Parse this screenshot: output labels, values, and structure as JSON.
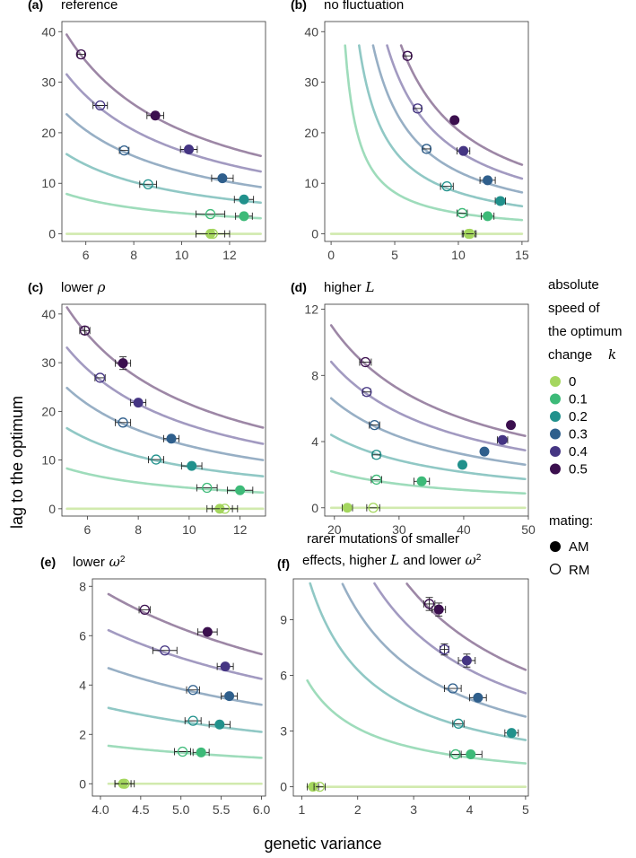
{
  "figure": {
    "xlabel": "genetic variance",
    "ylabel": "lag to the optimum",
    "legend": {
      "title_lines": [
        "absolute",
        "speed of",
        "the optimum",
        "change"
      ],
      "title_symbol": "k",
      "k_values": [
        "0",
        "0.1",
        "0.2",
        "0.3",
        "0.4",
        "0.5"
      ],
      "colors": [
        "#a4d65e",
        "#3dba78",
        "#21918c",
        "#2f5f8c",
        "#453583",
        "#3b0f4e"
      ],
      "mating_title": "mating:",
      "mating": [
        "AM",
        "RM"
      ]
    }
  },
  "chart_data": [
    {
      "type": "scatter",
      "tag": "(a)",
      "title": "reference",
      "xlim": [
        5,
        13.5
      ],
      "ylim": [
        -1.5,
        42
      ],
      "xticks": [
        6,
        8,
        10,
        12
      ],
      "yticks": [
        0,
        10,
        20,
        30,
        40
      ],
      "xtick_labels": [
        "6",
        "8",
        "10",
        "12"
      ],
      "ytick_labels": [
        "0",
        "10",
        "20",
        "30",
        "40"
      ],
      "curves": [
        {
          "k": 0,
          "C": 0,
          "xr": [
            5.2,
            13.3
          ]
        },
        {
          "k": 0.1,
          "C": 41,
          "xr": [
            5.2,
            13.3
          ]
        },
        {
          "k": 0.2,
          "C": 82,
          "xr": [
            5.2,
            13.3
          ]
        },
        {
          "k": 0.3,
          "C": 123,
          "xr": [
            5.2,
            13.3
          ]
        },
        {
          "k": 0.4,
          "C": 164,
          "xr": [
            5.2,
            13.3
          ]
        },
        {
          "k": 0.5,
          "C": 205,
          "xr": [
            5.2,
            13.3
          ]
        }
      ],
      "points": [
        {
          "k": 0,
          "m": "AM",
          "x": 11.2,
          "y": 0,
          "xe": 0.6
        },
        {
          "k": 0,
          "m": "RM",
          "x": 11.3,
          "y": 0,
          "xe": 0.7
        },
        {
          "k": 0.1,
          "m": "AM",
          "x": 12.6,
          "y": 3.5,
          "xe": 0.35
        },
        {
          "k": 0.1,
          "m": "RM",
          "x": 11.2,
          "y": 3.9,
          "xe": 0.6
        },
        {
          "k": 0.2,
          "m": "AM",
          "x": 12.6,
          "y": 6.8,
          "xe": 0.4
        },
        {
          "k": 0.2,
          "m": "RM",
          "x": 8.6,
          "y": 9.8,
          "xe": 0.35
        },
        {
          "k": 0.3,
          "m": "AM",
          "x": 11.7,
          "y": 11,
          "xe": 0.45
        },
        {
          "k": 0.3,
          "m": "RM",
          "x": 7.6,
          "y": 16.5,
          "xe": 0.2
        },
        {
          "k": 0.4,
          "m": "AM",
          "x": 10.3,
          "y": 16.7,
          "xe": 0.35
        },
        {
          "k": 0.4,
          "m": "RM",
          "x": 6.6,
          "y": 25.4,
          "xe": 0.3
        },
        {
          "k": 0.5,
          "m": "AM",
          "x": 8.9,
          "y": 23.4,
          "xe": 0.35
        },
        {
          "k": 0.5,
          "m": "RM",
          "x": 5.8,
          "y": 35.5,
          "xe": 0.15
        }
      ]
    },
    {
      "type": "scatter",
      "tag": "(b)",
      "title": "no fluctuation",
      "xlim": [
        -0.5,
        15.5
      ],
      "ylim": [
        -1.5,
        42
      ],
      "xticks": [
        0,
        5,
        10,
        15
      ],
      "yticks": [
        0,
        10,
        20,
        30,
        40
      ],
      "xtick_labels": [
        "0",
        "5",
        "10",
        "15"
      ],
      "ytick_labels": [
        "0",
        "10",
        "20",
        "30",
        "40"
      ],
      "curves": [
        {
          "k": 0,
          "C": 0,
          "xr": [
            0,
            15
          ]
        },
        {
          "k": 0.1,
          "C": 41,
          "xr": [
            1.1,
            15
          ]
        },
        {
          "k": 0.2,
          "C": 82,
          "xr": [
            2.2,
            15
          ]
        },
        {
          "k": 0.3,
          "C": 123,
          "xr": [
            3.3,
            15
          ]
        },
        {
          "k": 0.4,
          "C": 164,
          "xr": [
            4.4,
            15
          ]
        },
        {
          "k": 0.5,
          "C": 205,
          "xr": [
            5.5,
            15
          ]
        }
      ],
      "points": [
        {
          "k": 0,
          "m": "AM",
          "x": 10.8,
          "y": 0,
          "xe": 0.5
        },
        {
          "k": 0,
          "m": "RM",
          "x": 10.9,
          "y": 0,
          "xe": 0.5
        },
        {
          "k": 0.1,
          "m": "AM",
          "x": 12.3,
          "y": 3.5,
          "xe": 0.5
        },
        {
          "k": 0.1,
          "m": "RM",
          "x": 10.3,
          "y": 4.1,
          "xe": 0.4
        },
        {
          "k": 0.2,
          "m": "AM",
          "x": 13.3,
          "y": 6.5,
          "xe": 0.4
        },
        {
          "k": 0.2,
          "m": "RM",
          "x": 9.1,
          "y": 9.4,
          "xe": 0.5
        },
        {
          "k": 0.3,
          "m": "AM",
          "x": 12.3,
          "y": 10.6,
          "xe": 0.6
        },
        {
          "k": 0.3,
          "m": "RM",
          "x": 7.5,
          "y": 16.8,
          "xe": 0.3
        },
        {
          "k": 0.4,
          "m": "AM",
          "x": 10.4,
          "y": 16.4,
          "xe": 0.5
        },
        {
          "k": 0.4,
          "m": "RM",
          "x": 6.8,
          "y": 24.8,
          "xe": 0.3
        },
        {
          "k": 0.5,
          "m": "AM",
          "x": 9.7,
          "y": 22.5,
          "xe": 0.2
        },
        {
          "k": 0.5,
          "m": "RM",
          "x": 6.0,
          "y": 35.2,
          "xe": 0.3
        }
      ]
    },
    {
      "type": "scatter",
      "tag": "(c)",
      "title": "lower",
      "title_symbol": "ρ",
      "xlim": [
        5,
        13
      ],
      "ylim": [
        -1.5,
        42
      ],
      "xticks": [
        6,
        8,
        10,
        12
      ],
      "yticks": [
        0,
        10,
        20,
        30,
        40
      ],
      "xtick_labels": [
        "6",
        "8",
        "10",
        "12"
      ],
      "ytick_labels": [
        "0",
        "10",
        "20",
        "30",
        "40"
      ],
      "curves": [
        {
          "k": 0,
          "C": 0,
          "xr": [
            5.2,
            12.9
          ]
        },
        {
          "k": 0.1,
          "C": 43,
          "xr": [
            5.2,
            12.9
          ]
        },
        {
          "k": 0.2,
          "C": 86,
          "xr": [
            5.2,
            12.9
          ]
        },
        {
          "k": 0.3,
          "C": 129,
          "xr": [
            5.2,
            12.9
          ]
        },
        {
          "k": 0.4,
          "C": 172,
          "xr": [
            5.2,
            12.9
          ]
        },
        {
          "k": 0.5,
          "C": 215,
          "xr": [
            5.2,
            12.9
          ]
        }
      ],
      "points": [
        {
          "k": 0,
          "m": "AM",
          "x": 11.2,
          "y": 0,
          "xe": 0.5
        },
        {
          "k": 0,
          "m": "RM",
          "x": 11.4,
          "y": 0,
          "xe": 0.5
        },
        {
          "k": 0.1,
          "m": "AM",
          "x": 12.0,
          "y": 3.8,
          "xe": 0.5
        },
        {
          "k": 0.1,
          "m": "RM",
          "x": 10.7,
          "y": 4.3,
          "xe": 0.4
        },
        {
          "k": 0.2,
          "m": "AM",
          "x": 10.1,
          "y": 8.8,
          "xe": 0.4
        },
        {
          "k": 0.2,
          "m": "RM",
          "x": 8.7,
          "y": 10.1,
          "xe": 0.3
        },
        {
          "k": 0.3,
          "m": "AM",
          "x": 9.3,
          "y": 14.4,
          "xe": 0.3
        },
        {
          "k": 0.3,
          "m": "RM",
          "x": 7.4,
          "y": 17.7,
          "xe": 0.3
        },
        {
          "k": 0.4,
          "m": "AM",
          "x": 8.0,
          "y": 21.8,
          "xe": 0.3
        },
        {
          "k": 0.4,
          "m": "RM",
          "x": 6.5,
          "y": 26.9,
          "xe": 0.2
        },
        {
          "k": 0.5,
          "m": "AM",
          "x": 7.4,
          "y": 29.9,
          "xe": 0.3,
          "ye": 1.3
        },
        {
          "k": 0.5,
          "m": "RM",
          "x": 5.9,
          "y": 36.6,
          "xe": 0.2,
          "ye": 0.8
        }
      ]
    },
    {
      "type": "scatter",
      "tag": "(d)",
      "title": "higher",
      "title_symbol": "L",
      "xlim": [
        18.5,
        50
      ],
      "ylim": [
        -0.5,
        12.3
      ],
      "xticks": [
        20,
        30,
        40,
        50
      ],
      "yticks": [
        0,
        4,
        8,
        12
      ],
      "xtick_labels": [
        "20",
        "30",
        "40",
        "50"
      ],
      "ytick_labels": [
        "0",
        "4",
        "8",
        "12"
      ],
      "curves": [
        {
          "k": 0,
          "C": 0,
          "xr": [
            19.5,
            49.5
          ]
        },
        {
          "k": 0.1,
          "C": 43,
          "xr": [
            19.5,
            49.5
          ]
        },
        {
          "k": 0.2,
          "C": 86,
          "xr": [
            19.5,
            49.5
          ]
        },
        {
          "k": 0.3,
          "C": 129,
          "xr": [
            19.5,
            49.5
          ]
        },
        {
          "k": 0.4,
          "C": 172,
          "xr": [
            19.5,
            49.5
          ]
        },
        {
          "k": 0.5,
          "C": 215,
          "xr": [
            19.5,
            49.5
          ]
        }
      ],
      "points": [
        {
          "k": 0,
          "m": "AM",
          "x": 22.0,
          "y": 0,
          "xe": 0.8
        },
        {
          "k": 0,
          "m": "RM",
          "x": 26.0,
          "y": 0,
          "xe": 1.0
        },
        {
          "k": 0.1,
          "m": "AM",
          "x": 33.5,
          "y": 1.6,
          "xe": 1.2
        },
        {
          "k": 0.1,
          "m": "RM",
          "x": 26.5,
          "y": 1.7,
          "xe": 0.8
        },
        {
          "k": 0.2,
          "m": "AM",
          "x": 39.8,
          "y": 2.6,
          "xe": 0.5
        },
        {
          "k": 0.2,
          "m": "RM",
          "x": 26.5,
          "y": 3.2,
          "xe": 0.6
        },
        {
          "k": 0.3,
          "m": "AM",
          "x": 43.2,
          "y": 3.4,
          "xe": 0.4
        },
        {
          "k": 0.3,
          "m": "RM",
          "x": 26.2,
          "y": 5.0,
          "xe": 0.8
        },
        {
          "k": 0.4,
          "m": "AM",
          "x": 46.0,
          "y": 4.1,
          "xe": 0.8
        },
        {
          "k": 0.4,
          "m": "RM",
          "x": 25.0,
          "y": 7.0,
          "xe": 0.6
        },
        {
          "k": 0.5,
          "m": "AM",
          "x": 47.3,
          "y": 5.0,
          "xe": 0.3
        },
        {
          "k": 0.5,
          "m": "RM",
          "x": 24.8,
          "y": 8.8,
          "xe": 0.9
        }
      ]
    },
    {
      "type": "scatter",
      "tag": "(e)",
      "title": "lower",
      "title_symbol": "ω",
      "title_sup": "2",
      "xlim": [
        3.9,
        6.05
      ],
      "ylim": [
        -0.5,
        8.3
      ],
      "xticks": [
        4.0,
        4.5,
        5.0,
        5.5,
        6.0
      ],
      "yticks": [
        0,
        2,
        4,
        6,
        8
      ],
      "xtick_labels": [
        "4.0",
        "4.5",
        "5.0",
        "5.5",
        "6.0"
      ],
      "ytick_labels": [
        "0",
        "2",
        "4",
        "6",
        "8"
      ],
      "curves": [
        {
          "k": 0,
          "C": 0,
          "xr": [
            4.1,
            6.0
          ]
        },
        {
          "k": 0.1,
          "C": 6.3,
          "xr": [
            4.1,
            6.0
          ]
        },
        {
          "k": 0.2,
          "C": 12.6,
          "xr": [
            4.1,
            6.0
          ]
        },
        {
          "k": 0.3,
          "C": 19.2,
          "xr": [
            4.1,
            6.0
          ]
        },
        {
          "k": 0.4,
          "C": 25.5,
          "xr": [
            4.1,
            6.0
          ]
        },
        {
          "k": 0.5,
          "C": 31.5,
          "xr": [
            4.1,
            6.0
          ]
        }
      ],
      "points": [
        {
          "k": 0,
          "m": "AM",
          "x": 4.28,
          "y": 0,
          "xe": 0.1
        },
        {
          "k": 0,
          "m": "RM",
          "x": 4.3,
          "y": 0,
          "xe": 0.12
        },
        {
          "k": 0.1,
          "m": "AM",
          "x": 5.25,
          "y": 1.27,
          "xe": 0.1
        },
        {
          "k": 0.1,
          "m": "RM",
          "x": 5.02,
          "y": 1.3,
          "xe": 0.1
        },
        {
          "k": 0.2,
          "m": "AM",
          "x": 5.48,
          "y": 2.4,
          "xe": 0.13
        },
        {
          "k": 0.2,
          "m": "RM",
          "x": 5.15,
          "y": 2.55,
          "xe": 0.1
        },
        {
          "k": 0.3,
          "m": "AM",
          "x": 5.6,
          "y": 3.55,
          "xe": 0.1
        },
        {
          "k": 0.3,
          "m": "RM",
          "x": 5.15,
          "y": 3.8,
          "xe": 0.08
        },
        {
          "k": 0.4,
          "m": "AM",
          "x": 5.55,
          "y": 4.75,
          "xe": 0.1
        },
        {
          "k": 0.4,
          "m": "RM",
          "x": 4.8,
          "y": 5.4,
          "xe": 0.15
        },
        {
          "k": 0.5,
          "m": "AM",
          "x": 5.33,
          "y": 6.15,
          "xe": 0.12
        },
        {
          "k": 0.5,
          "m": "RM",
          "x": 4.55,
          "y": 7.05,
          "xe": 0.07
        }
      ]
    },
    {
      "type": "scatter",
      "tag": "(f)",
      "title_lines": [
        "rarer mutations of smaller",
        "effects, higher"
      ],
      "title_symbol": "L",
      "title_tail": "and lower",
      "title_symbol2": "ω",
      "title_sup": "2",
      "xlim": [
        0.85,
        5.05
      ],
      "ylim": [
        -0.5,
        11.2
      ],
      "xticks": [
        1,
        2,
        3,
        4,
        5
      ],
      "yticks": [
        0,
        3,
        6,
        9
      ],
      "xtick_labels": [
        "1",
        "2",
        "3",
        "4",
        "5"
      ],
      "ytick_labels": [
        "0",
        "3",
        "6",
        "9"
      ],
      "curves": [
        {
          "k": 0,
          "C": 0,
          "xr": [
            1.1,
            5
          ]
        },
        {
          "k": 0.1,
          "C": 6.3,
          "xr": [
            1.1,
            5
          ]
        },
        {
          "k": 0.2,
          "C": 12.6,
          "xr": [
            1.15,
            5
          ]
        },
        {
          "k": 0.3,
          "C": 18.9,
          "xr": [
            1.73,
            5
          ]
        },
        {
          "k": 0.4,
          "C": 25.2,
          "xr": [
            2.3,
            5
          ]
        },
        {
          "k": 0.5,
          "C": 31.5,
          "xr": [
            2.88,
            5
          ]
        }
      ],
      "points": [
        {
          "k": 0,
          "m": "AM",
          "x": 1.2,
          "y": 0,
          "xe": 0.1
        },
        {
          "k": 0,
          "m": "RM",
          "x": 1.32,
          "y": 0,
          "xe": 0.1
        },
        {
          "k": 0.1,
          "m": "AM",
          "x": 4.02,
          "y": 1.75,
          "xe": 0.2
        },
        {
          "k": 0.1,
          "m": "RM",
          "x": 3.75,
          "y": 1.75,
          "xe": 0.1
        },
        {
          "k": 0.2,
          "m": "AM",
          "x": 4.75,
          "y": 2.9,
          "xe": 0.12
        },
        {
          "k": 0.2,
          "m": "RM",
          "x": 3.8,
          "y": 3.4,
          "xe": 0.1
        },
        {
          "k": 0.3,
          "m": "AM",
          "x": 4.15,
          "y": 4.8,
          "xe": 0.15
        },
        {
          "k": 0.3,
          "m": "RM",
          "x": 3.7,
          "y": 5.3,
          "xe": 0.15
        },
        {
          "k": 0.4,
          "m": "AM",
          "x": 3.95,
          "y": 6.8,
          "xe": 0.15,
          "ye": 0.35
        },
        {
          "k": 0.4,
          "m": "RM",
          "x": 3.55,
          "y": 7.4,
          "xe": 0.08,
          "ye": 0.3
        },
        {
          "k": 0.5,
          "m": "AM",
          "x": 3.45,
          "y": 9.55,
          "xe": 0.12,
          "ye": 0.35
        },
        {
          "k": 0.5,
          "m": "RM",
          "x": 3.28,
          "y": 9.85,
          "xe": 0.1,
          "ye": 0.35
        }
      ]
    }
  ]
}
